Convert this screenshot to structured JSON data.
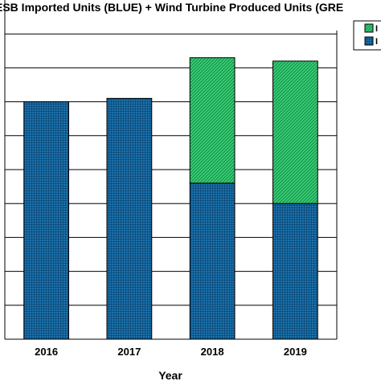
{
  "chart_data": {
    "type": "bar",
    "stacked": true,
    "title": "ESB Imported Units (BLUE) + Wind Turbine Produced Units (GRE",
    "xlabel": "Year",
    "ylabel": "",
    "categories": [
      "2016",
      "2017",
      "2018",
      "2019"
    ],
    "ylim": [
      0,
      10
    ],
    "grid": true,
    "legend_position": "top-right",
    "series": [
      {
        "legend_text": "I",
        "color": "#1a6fa8",
        "pattern": "grid",
        "values": [
          7.0,
          7.1,
          4.6,
          4.0
        ]
      },
      {
        "legend_text": "I",
        "color": "#2fc46a",
        "pattern": "diagonal",
        "values": [
          0,
          0,
          3.7,
          4.2
        ]
      }
    ]
  }
}
